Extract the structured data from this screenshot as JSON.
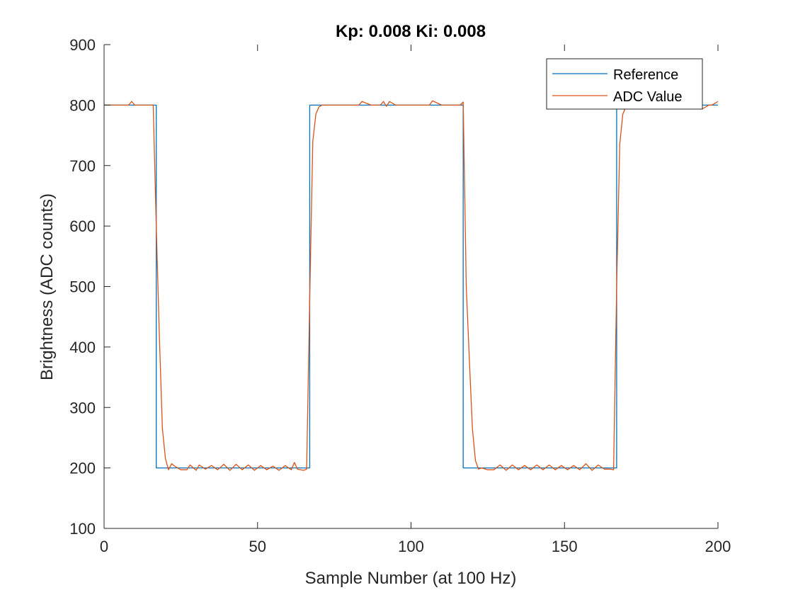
{
  "chart_data": {
    "type": "line",
    "title": "Kp: 0.008  Ki: 0.008",
    "xlabel": "Sample Number (at 100 Hz)",
    "ylabel": "Brightness (ADC counts)",
    "xlim": [
      0,
      200
    ],
    "ylim": [
      100,
      900
    ],
    "xticks": [
      0,
      50,
      100,
      150,
      200
    ],
    "yticks": [
      100,
      200,
      300,
      400,
      500,
      600,
      700,
      800,
      900
    ],
    "grid": false,
    "legend_position": "top-right",
    "series": [
      {
        "name": "Reference",
        "color": "#0072BD",
        "x": [
          0,
          17,
          17,
          67,
          67,
          117,
          117,
          167,
          167,
          200
        ],
        "y": [
          800,
          800,
          200,
          200,
          800,
          800,
          200,
          200,
          800,
          800
        ]
      },
      {
        "name": "ADC Value",
        "color": "#D95319",
        "x": [
          0,
          3,
          6,
          8,
          9,
          10,
          13,
          15,
          16,
          17,
          18,
          19,
          20,
          21,
          22,
          23,
          25,
          27,
          28,
          30,
          31,
          33,
          35,
          37,
          39,
          41,
          43,
          45,
          47,
          49,
          51,
          53,
          55,
          57,
          59,
          61,
          62,
          63,
          65,
          66,
          67,
          68,
          69,
          70,
          71,
          73,
          76,
          80,
          83,
          84,
          87,
          90,
          91,
          92,
          93,
          95,
          98,
          101,
          104,
          106,
          107,
          110,
          113,
          116,
          117,
          118,
          119,
          120,
          121,
          122,
          123,
          125,
          127,
          129,
          131,
          133,
          135,
          137,
          139,
          141,
          143,
          145,
          147,
          149,
          151,
          153,
          155,
          157,
          159,
          161,
          163,
          165,
          166,
          167,
          168,
          169,
          170,
          171,
          173,
          176,
          180,
          185,
          190,
          193,
          195,
          197,
          198,
          200
        ],
        "y": [
          800,
          800,
          800,
          800,
          806,
          800,
          800,
          800,
          800,
          600,
          420,
          265,
          215,
          197,
          207,
          203,
          197,
          197,
          205,
          196,
          205,
          198,
          204,
          197,
          206,
          196,
          206,
          197,
          205,
          196,
          204,
          197,
          203,
          196,
          204,
          197,
          209,
          198,
          196,
          198,
          480,
          740,
          785,
          797,
          800,
          800,
          800,
          800,
          800,
          806,
          800,
          800,
          806,
          798,
          806,
          800,
          800,
          800,
          800,
          800,
          807,
          800,
          800,
          800,
          805,
          500,
          380,
          265,
          212,
          198,
          200,
          197,
          197,
          205,
          196,
          205,
          197,
          204,
          197,
          205,
          197,
          205,
          197,
          204,
          197,
          204,
          197,
          207,
          196,
          205,
          198,
          198,
          197,
          500,
          735,
          785,
          797,
          800,
          800,
          800,
          800,
          800,
          800,
          800,
          794,
          800,
          800,
          806
        ]
      }
    ]
  }
}
